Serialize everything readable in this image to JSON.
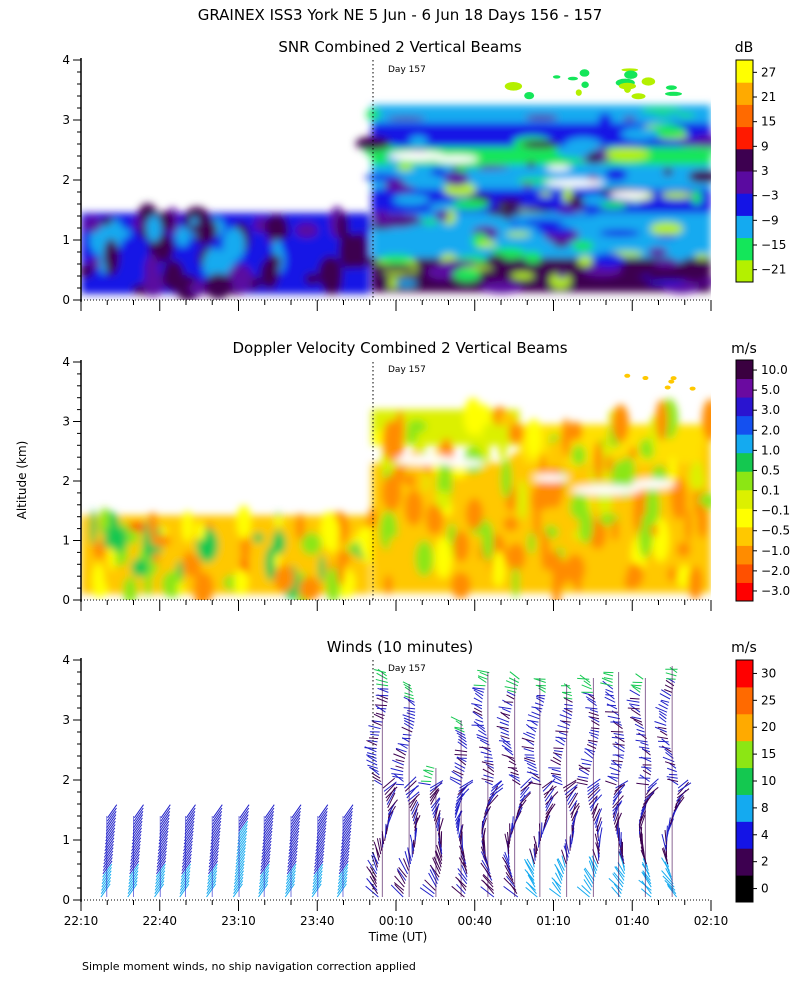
{
  "figure": {
    "title": "GRAINEX ISS3 York NE   5 Jun -  6 Jun 18 Days 156 - 157",
    "ylabel": "Altitude (km)",
    "xlabel": "Time (UT)",
    "footnote": "Simple moment winds, no ship navigation correction applied",
    "day_marker_label": "Day 157"
  },
  "chart_data": [
    {
      "type": "heatmap",
      "title": "SNR Combined 2 Vertical Beams",
      "colorbar_unit": "dB",
      "colorbar_labels": [
        "27",
        "21",
        "15",
        "9",
        "3",
        "−3",
        "−9",
        "−15",
        "−21"
      ],
      "colorbar_colors": [
        "#ffff00",
        "#ffaa00",
        "#ff6a00",
        "#ff1a00",
        "#3d0050",
        "#5a0aa0",
        "#1414e6",
        "#14aaf0",
        "#14e65a",
        "#b4f000"
      ],
      "x_ticks": [
        "22:10",
        "22:40",
        "23:10",
        "23:40",
        "00:10",
        "00:40",
        "01:10",
        "01:40",
        "02:10"
      ],
      "y_ticks": [
        "0",
        "1",
        "2",
        "3",
        "4"
      ],
      "ylim": [
        0,
        4
      ],
      "day_boundary": "00:00"
    },
    {
      "type": "heatmap",
      "title": "Doppler Velocity Combined 2 Vertical Beams",
      "colorbar_unit": "m/s",
      "colorbar_labels": [
        "10.0",
        "5.0",
        "3.0",
        "2.0",
        "1.0",
        "0.5",
        "0.1",
        "−0.1",
        "−0.5",
        "−1.0",
        "−2.0",
        "−3.0"
      ],
      "colorbar_colors": [
        "#3a0040",
        "#6a0aa0",
        "#2a14d0",
        "#1450f0",
        "#14aaf0",
        "#14c850",
        "#8ce614",
        "#dcf000",
        "#ffff00",
        "#ffc800",
        "#ff8c00",
        "#ff5000",
        "#ff0000"
      ],
      "x_ticks": [
        "22:10",
        "22:40",
        "23:10",
        "23:40",
        "00:10",
        "00:40",
        "01:10",
        "01:40",
        "02:10"
      ],
      "y_ticks": [
        "0",
        "1",
        "2",
        "3",
        "4"
      ],
      "ylim": [
        0,
        4
      ],
      "day_boundary": "00:00"
    },
    {
      "type": "scatter",
      "title": "Winds (10 minutes)",
      "colorbar_unit": "m/s",
      "colorbar_labels": [
        "30",
        "25",
        "20",
        "15",
        "10",
        "8",
        "4",
        "2",
        "0"
      ],
      "colorbar_colors": [
        "#ff0000",
        "#ff6a00",
        "#ffaa00",
        "#8ce614",
        "#14c850",
        "#14aaf0",
        "#1414e6",
        "#3d0050",
        "#000000"
      ],
      "x_ticks": [
        "22:10",
        "22:40",
        "23:10",
        "23:40",
        "00:10",
        "00:40",
        "01:10",
        "01:40",
        "02:10"
      ],
      "y_ticks": [
        "0",
        "1",
        "2",
        "3",
        "4"
      ],
      "ylim": [
        0,
        4
      ],
      "day_boundary": "00:00",
      "x_hours": [
        22.33,
        22.5,
        22.67,
        22.83,
        23.0,
        23.17,
        23.33,
        23.5,
        23.67,
        23.83,
        24.08,
        24.25,
        24.42,
        24.58,
        24.75,
        24.92,
        25.08,
        25.25,
        25.42,
        25.58,
        25.75,
        25.92
      ],
      "max_altitude_km": [
        1.4,
        1.4,
        1.4,
        1.4,
        1.4,
        1.4,
        1.4,
        1.4,
        1.4,
        1.4,
        3.8,
        3.6,
        2.2,
        3.0,
        3.8,
        3.7,
        3.7,
        3.6,
        3.7,
        3.8,
        3.7,
        3.9
      ]
    }
  ]
}
